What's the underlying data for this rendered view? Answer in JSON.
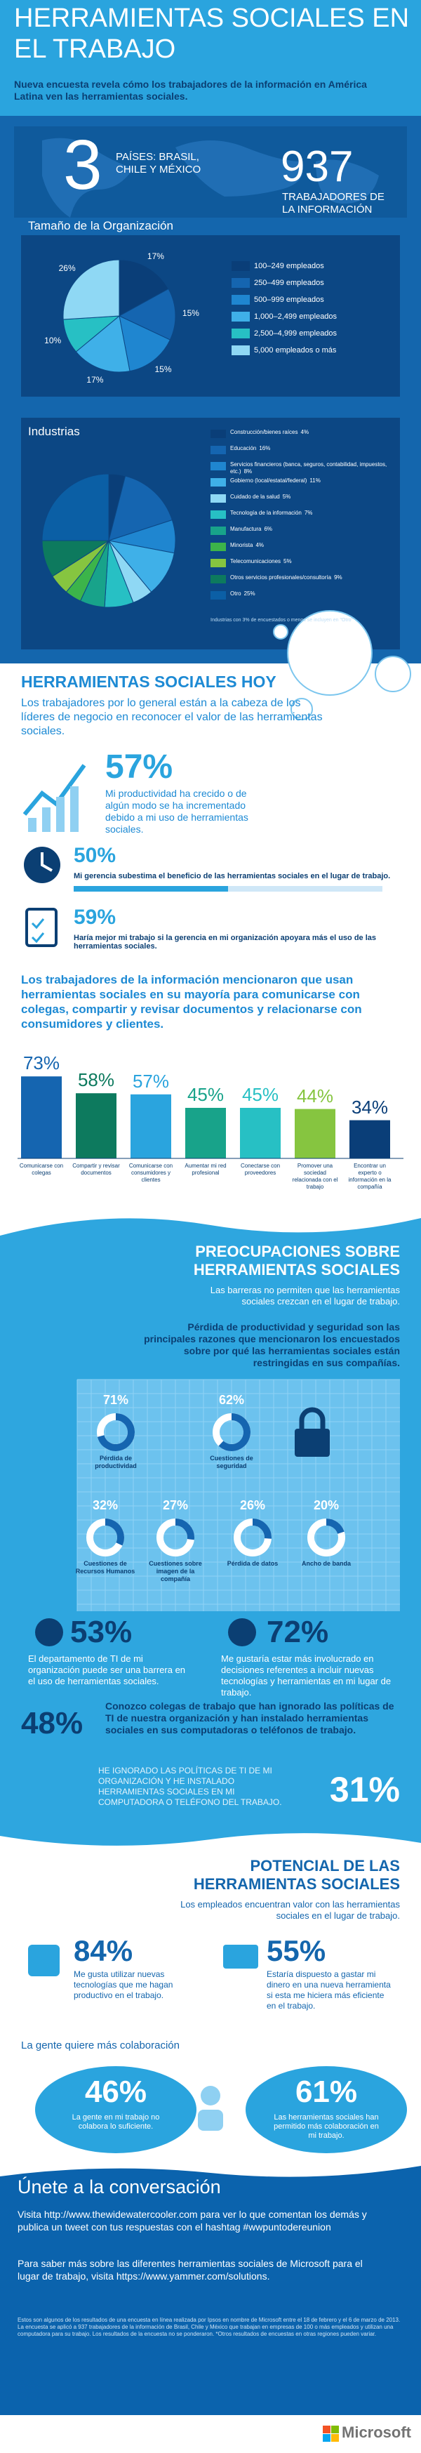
{
  "header": {
    "title": "HERRAMIENTAS SOCIALES EN EL TRABAJO",
    "subtitle": "Nueva encuesta revela cómo los trabajadores de la información en América Latina ven las herramientas sociales."
  },
  "overview": {
    "countries": 3,
    "countries_text": "PAÍSES: BRASIL, CHILE Y MÉXICO",
    "workers": 937,
    "workers_text": "TRABAJADORES DE LA INFORMACIÓN"
  },
  "org_size": {
    "type": "pie",
    "title": "Tamaño de la Organización",
    "categories": [
      "100–249 empleados",
      "250–499 empleados",
      "500–999 empleados",
      "1,000–2,499 empleados",
      "2,500–4,999 empleados",
      "5,000 empleados o más"
    ],
    "values": [
      17,
      15,
      15,
      17,
      10,
      26
    ],
    "value_labels": [
      "17%",
      "15%",
      "15%",
      "17%",
      "10%",
      "26%"
    ],
    "colors": [
      "#0a3e78",
      "#1565b0",
      "#1f86d0",
      "#3fb0e8",
      "#27c0c4",
      "#8fd8f4"
    ]
  },
  "industries": {
    "type": "pie",
    "title": "Industrias",
    "categories": [
      "Construcción/bienes raíces",
      "Educación",
      "Servicios financieros (banca, seguros, contabilidad, impuestos, etc.)",
      "Gobierno (local/estatal/federal)",
      "Cuidado de la salud",
      "Tecnología de la información",
      "Manufactura",
      "Minorista",
      "Telecomunicaciones",
      "Otros servicios profesionales/consultoría",
      "Otro"
    ],
    "values": [
      4,
      16,
      8,
      11,
      5,
      7,
      6,
      4,
      5,
      9,
      25
    ],
    "value_labels": [
      "4%",
      "16%",
      "8%",
      "11%",
      "5%",
      "7%",
      "6%",
      "4%",
      "5%",
      "9%",
      "25%"
    ],
    "colors": [
      "#0a3e78",
      "#1565b0",
      "#1f86d0",
      "#3fb0e8",
      "#8fd8f4",
      "#27c0c4",
      "#18a38a",
      "#3cb44a",
      "#86c540",
      "#0d7a5e",
      "#0b5fa5"
    ],
    "note": "Industrias con 3% de encuestados o menos se incluyen en \"Otro\""
  },
  "today": {
    "title": "HERRAMIENTAS SOCIALES HOY",
    "intro": "Los trabajadores por lo general están a la cabeza de los líderes de negocio en reconocer el valor de las herramientas sociales.",
    "stats": [
      {
        "value": 57,
        "label": "57%",
        "text": "Mi productividad ha crecido o de algún modo se ha incrementado debido a mi uso de herramientas sociales."
      },
      {
        "value": 50,
        "label": "50%",
        "text": "Mi gerencia subestima el beneficio de las herramientas sociales en el lugar de trabajo."
      },
      {
        "value": 59,
        "label": "59%",
        "text": "Haría mejor mi trabajo si la gerencia en mi organización apoyara más el uso de las herramientas sociales."
      }
    ]
  },
  "uses": {
    "type": "bar",
    "title": "Los trabajadores de la información mencionaron que usan herramientas sociales en su mayoría para comunicarse con colegas, compartir y revisar documentos y relacionarse con consumidores y clientes.",
    "categories": [
      "Comunicarse con colegas",
      "Compartir y revisar documentos",
      "Comunicarse con consumidores y clientes",
      "Aumentar mi red profesional",
      "Conectarse con proveedores",
      "Promover una sociedad relacionada con el trabajo",
      "Encontrar un experto o información en la compañía"
    ],
    "values": [
      73,
      58,
      57,
      45,
      45,
      44,
      34
    ],
    "value_labels": [
      "73%",
      "58%",
      "57%",
      "45%",
      "45%",
      "44%",
      "34%"
    ],
    "colors": [
      "#1565b0",
      "#0d7a5e",
      "#2aa4de",
      "#18a38a",
      "#27c0c4",
      "#86c540",
      "#0a3e78"
    ]
  },
  "concerns": {
    "title": "PREOCUPACIONES SOBRE HERRAMIENTAS SOCIALES",
    "intro": "Las barreras no permiten que las herramientas sociales crezcan en el lugar de trabajo.",
    "reasons": {
      "type": "donut",
      "title": "Pérdida de productividad y seguridad son las principales razones que mencionaron los encuestados sobre por qué las herramientas sociales están restringidas en sus compañías.",
      "categories": [
        "Pérdida de productividad",
        "Cuestiones de seguridad",
        "Cuestiones de Recursos Humanos",
        "Cuestiones sobre imagen de la compañía",
        "Pérdida de datos",
        "Ancho de banda"
      ],
      "values": [
        71,
        62,
        32,
        27,
        26,
        20
      ],
      "value_labels": [
        "71%",
        "62%",
        "32%",
        "27%",
        "26%",
        "20%"
      ]
    },
    "it_barrier": {
      "value": 53,
      "label": "53%",
      "text": "El departamento de TI de mi organización puede ser una barrera en el uso de herramientas sociales."
    },
    "involved": {
      "value": 72,
      "label": "72%",
      "text": "Me gustaría estar más involucrado en decisiones referentes a incluir nuevas tecnologías y herramientas en mi lugar de trabajo."
    },
    "colleagues": {
      "value": 48,
      "label": "48%",
      "text": "Conozco colegas de trabajo que han ignorado las políticas de TI de nuestra organización y han instalado herramientas sociales en sus computadoras o teléfonos de trabajo."
    },
    "ignored": {
      "value": 31,
      "label": "31%",
      "text": "HE IGNORADO LAS POLÍTICAS DE TI DE MI ORGANIZACIÓN Y HE INSTALADO HERRAMIENTAS SOCIALES EN MI COMPUTADORA O TELÉFONO DEL TRABAJO."
    }
  },
  "potential": {
    "title": "POTENCIAL DE LAS HERRAMIENTAS SOCIALES",
    "intro": "Los empleados encuentran valor con las herramientas sociales en el lugar de trabajo.",
    "new_tech": {
      "value": 84,
      "label": "84%",
      "text": "Me gusta utilizar nuevas tecnologías que me hagan productivo en el trabajo."
    },
    "spend": {
      "value": 55,
      "label": "55%",
      "text": "Estaría dispuesto a gastar mi dinero en una nueva herramienta si esta me hiciera más eficiente en el trabajo."
    }
  },
  "collaboration": {
    "title": "La gente quiere más colaboración",
    "not_enough": {
      "value": 46,
      "label": "46%",
      "text": "La gente en mi trabajo no colabora lo suficiente."
    },
    "enabled": {
      "value": 61,
      "label": "61%",
      "text": "Las herramientas sociales han permitido más colaboración en mi trabajo."
    }
  },
  "footer": {
    "title": "Únete a la conversación",
    "line1": "Visita http://www.thewidewatercooler.com para ver lo que comentan los demás y publica un tweet con tus respuestas con el hashtag #wwpuntodereunion",
    "line2": "Para saber más sobre las diferentes herramientas sociales de Microsoft para el lugar de trabajo, visita https://www.yammer.com/solutions.",
    "fine_print": "Estos son algunos de los resultados de una encuesta en línea realizada por Ipsos en nombre de Microsoft entre el 18 de febrero y el 6 de marzo de 2013. La encuesta se aplicó a 937 trabajadores de la información de Brasil, Chile y México que trabajan en empresas de 100 o más empleados y utilizan una computadora para su trabajo. Los resultados de la encuesta no se ponderaron. *Otros resultados de encuestas en otras regiones pueden variar.",
    "brand": "Microsoft"
  }
}
